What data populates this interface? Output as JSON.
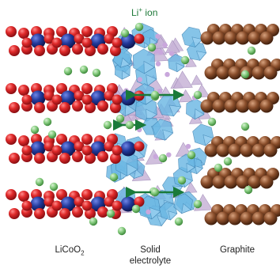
{
  "labels": {
    "ion_main": "Li",
    "ion_sup": "+",
    "ion_rest": " ion",
    "cathode_main": "LiCoO",
    "cathode_sub": "2",
    "electrolyte_line1": "Solid",
    "electrolyte_line2": "electrolyte",
    "anode": "Graphite"
  },
  "colors": {
    "oxygen": "#d81e26",
    "cobalt": "#1d2f8f",
    "lithium": "#7cc87a",
    "polyhedron": "#6cb8e4",
    "polyhedron_light": "#c8b4d8",
    "carbon": "#7a4526",
    "arrow": "#1a7a3a"
  }
}
